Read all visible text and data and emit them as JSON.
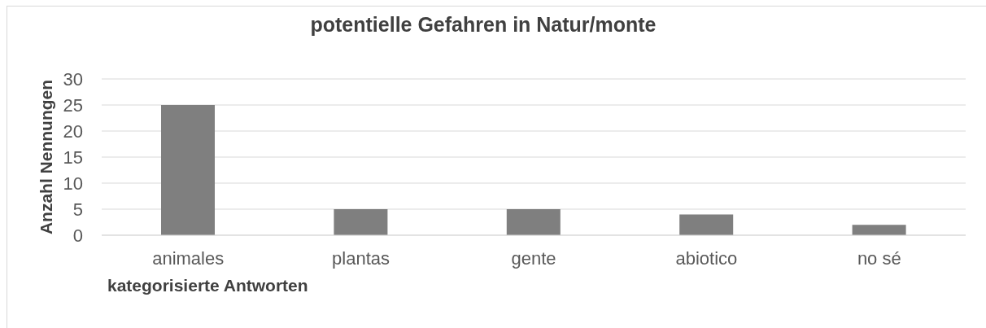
{
  "chart_data": {
    "type": "bar",
    "title": "potentielle Gefahren in Natur/monte",
    "xlabel": "kategorisierte Antworten",
    "ylabel": "Anzahl Nennungen",
    "categories": [
      "animales",
      "plantas",
      "gente",
      "abiotico",
      "no sé"
    ],
    "values": [
      25,
      5,
      5,
      4,
      2
    ],
    "color": "#7f7f7f",
    "ylim": [
      0,
      30
    ],
    "yticks": [
      0,
      5,
      10,
      15,
      20,
      25,
      30
    ],
    "grid": "y"
  }
}
